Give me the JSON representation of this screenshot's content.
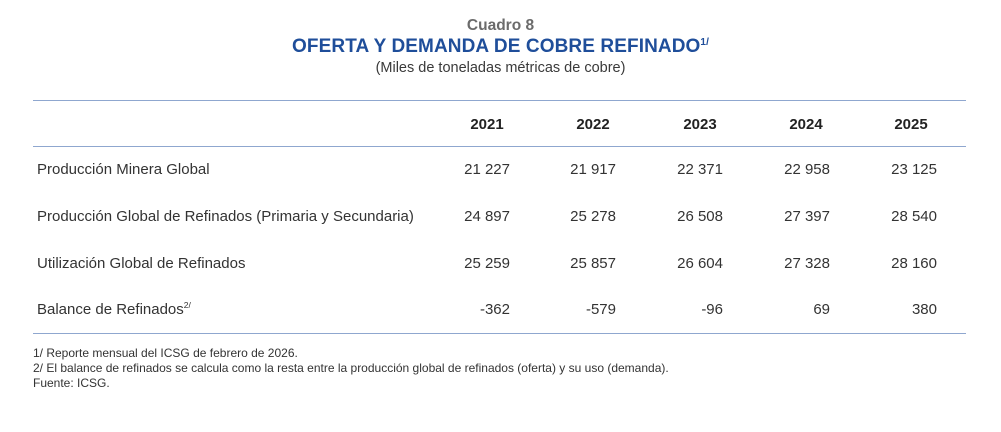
{
  "header": {
    "cuadro": "Cuadro 8",
    "title": "OFERTA Y DEMANDA DE COBRE REFINADO",
    "title_sup": "1/",
    "subtitle": "(Miles de toneladas métricas de cobre)"
  },
  "table": {
    "columns": [
      "2021",
      "2022",
      "2023",
      "2024",
      "2025"
    ],
    "rows": [
      {
        "label": "Producción Minera Global",
        "sup": "",
        "values": [
          "21 227",
          "21 917",
          "22 371",
          "22 958",
          "23 125"
        ]
      },
      {
        "label": "Producción Global de Refinados (Primaria y Secundaria)",
        "sup": "",
        "values": [
          "24 897",
          "25 278",
          "26 508",
          "27 397",
          "28 540"
        ]
      },
      {
        "label": "Utilización Global de Refinados",
        "sup": "",
        "values": [
          "25 259",
          "25 857",
          "26 604",
          "27 328",
          "28 160"
        ]
      },
      {
        "label": "Balance de Refinados",
        "sup": "2/",
        "values": [
          "-362",
          "-579",
          "-96",
          "69",
          "380"
        ]
      }
    ]
  },
  "notes": [
    "1/ Reporte mensual del ICSG de febrero de 2026.",
    "2/ El balance de refinados se calcula como la resta entre la producción global de refinados (oferta) y su uso (demanda).",
    "Fuente: ICSG."
  ],
  "colors": {
    "title": "#1f4e9a",
    "rule": "#8fa7cf"
  }
}
